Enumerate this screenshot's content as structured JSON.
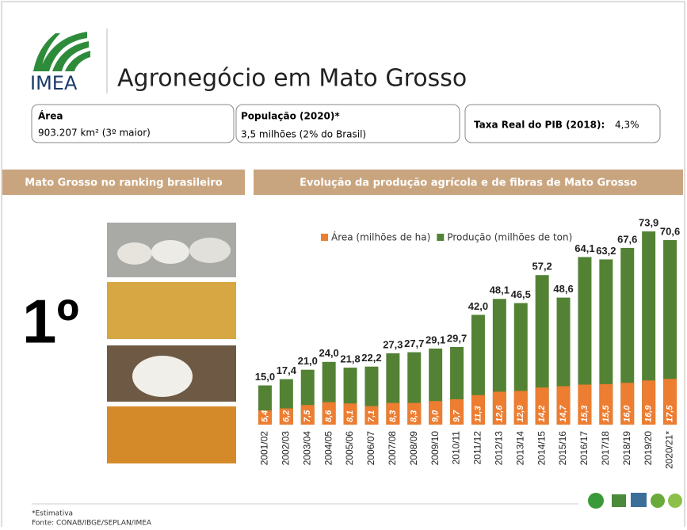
{
  "header": {
    "logo": "IMEA",
    "title": "Agronegócio em Mato Grosso"
  },
  "info": [
    {
      "label": "Área",
      "value": "903.207 km² (3º maior)"
    },
    {
      "label": "População (2020)*",
      "value": "3,5 milhões (2% do Brasil)"
    },
    {
      "label": "Taxa Real do PIB (2018):",
      "value": "4,3%"
    }
  ],
  "ranking": {
    "heading": "Mato Grosso no ranking brasileiro",
    "position": "1º"
  },
  "chart_data": {
    "type": "bar",
    "barmode": "overlay",
    "title": "Evolução da produção agrícola e de fibras de Mato Grosso",
    "legend": "top-left",
    "categories": [
      "2001/02",
      "2002/03",
      "2003/04",
      "2004/05",
      "2005/06",
      "2006/07",
      "2007/08",
      "2008/09",
      "2009/10",
      "2010/11",
      "2011/12",
      "2012/13",
      "2013/14",
      "2014/15",
      "2015/16",
      "2016/17",
      "2017/18",
      "2018/19",
      "2019/20",
      "2020/21*"
    ],
    "ylim": [
      0,
      80
    ],
    "series": [
      {
        "name": "Produção (milhões de ton)",
        "color": "#548235",
        "values": [
          15.0,
          17.4,
          21.0,
          24.0,
          21.8,
          22.2,
          27.3,
          27.7,
          29.1,
          29.7,
          42.0,
          48.1,
          46.5,
          57.2,
          48.6,
          64.1,
          63.2,
          67.6,
          73.9,
          70.6
        ],
        "value_labels": [
          "15,0",
          "17,4",
          "21,0",
          "24,0",
          "21,8",
          "22,2",
          "27,3",
          "27,7",
          "29,1",
          "29,7",
          "42,0",
          "48,1",
          "46,5",
          "57,2",
          "48,6",
          "64,1",
          "63,2",
          "67,6",
          "73,9",
          "70,6"
        ]
      },
      {
        "name": "Área (milhões de ha)",
        "color": "#ed7d31",
        "values": [
          5.4,
          6.2,
          7.5,
          8.6,
          8.1,
          7.1,
          8.3,
          8.3,
          9.0,
          9.7,
          11.3,
          12.6,
          12.9,
          14.2,
          14.7,
          15.3,
          15.5,
          16.0,
          16.9,
          17.5
        ],
        "value_labels": [
          "5,4",
          "6,2",
          "7,5",
          "8,6",
          "8,1",
          "7,1",
          "8,3",
          "8,3",
          "9,0",
          "9,7",
          "11,3",
          "12,6",
          "12,9",
          "14,2",
          "14,7",
          "15,3",
          "15,5",
          "16,0",
          "16,9",
          "17,5"
        ]
      }
    ]
  },
  "footer": {
    "note": "*Estimativa",
    "source": "Fonte: CONAB/IBGE/SEPLAN/IMEA"
  }
}
